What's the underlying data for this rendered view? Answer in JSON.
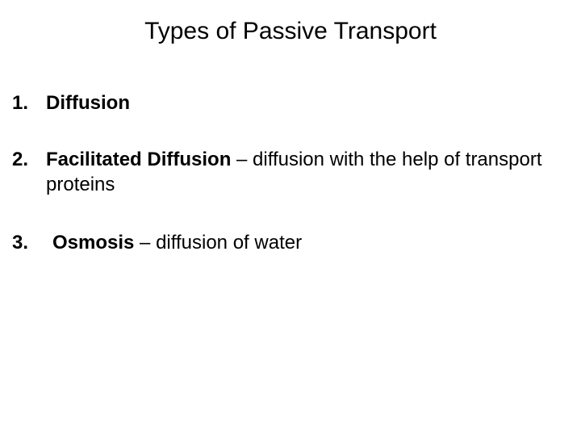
{
  "title": "Types of Passive Transport",
  "items": {
    "one": {
      "num": "1.",
      "term": "Diffusion",
      "def": ""
    },
    "two": {
      "num": "2.",
      "term": "Facilitated Diffusion",
      "def": " – diffusion with the help of transport proteins"
    },
    "three": {
      "num": "3.",
      "term": "Osmosis",
      "def": " – diffusion of water"
    }
  },
  "style": {
    "background_color": "#ffffff",
    "text_color": "#000000",
    "title_fontsize": 30,
    "body_fontsize": 24,
    "font_family": "Arial"
  }
}
